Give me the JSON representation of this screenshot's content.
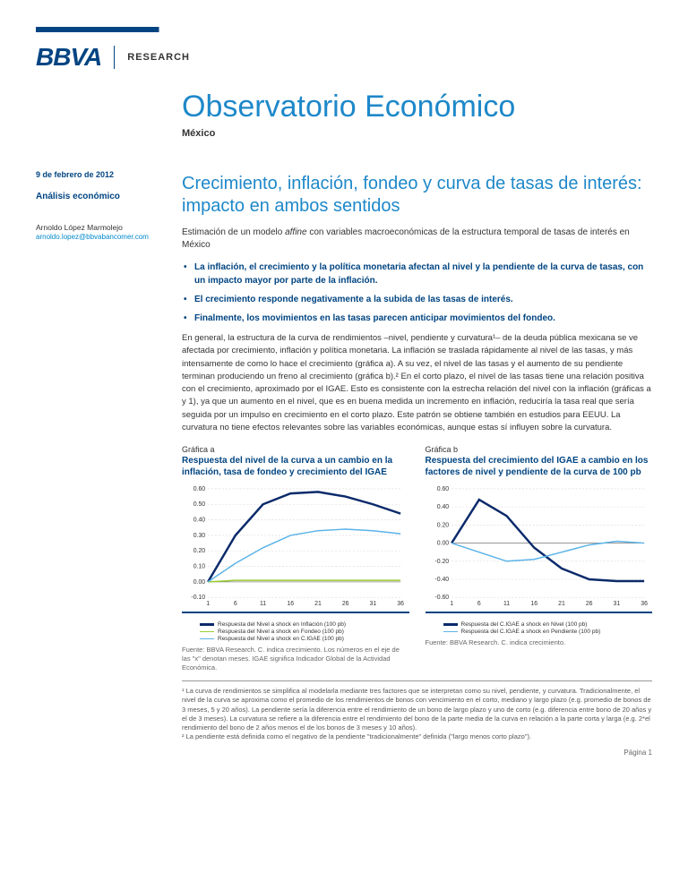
{
  "header": {
    "logo": "BBVA",
    "research": "RESEARCH"
  },
  "sidebar": {
    "date": "9  de febrero de 2012",
    "section": "Análisis económico",
    "author": "Arnoldo López Marmolejo",
    "email": "arnoldo.lopez@bbvabancomer.com"
  },
  "doc": {
    "title": "Observatorio Económico",
    "country": "México"
  },
  "article": {
    "title": "Crecimiento, inflación, fondeo y curva de tasas de interés: impacto en ambos sentidos",
    "subtitle_pre": "Estimación de un modelo ",
    "subtitle_em": "affine",
    "subtitle_post": " con variables macroeconómicas de la estructura temporal de tasas de interés en México",
    "bullets": [
      "La inflación, el crecimiento y la política monetaria afectan al nivel y la pendiente de la curva de tasas, con un impacto mayor por parte de la inflación.",
      "El crecimiento responde negativamente a la subida de las tasas de interés.",
      "Finalmente, los movimientos en las tasas parecen anticipar movimientos del fondeo."
    ],
    "body": "En general, la estructura de la curva de rendimientos –nivel, pendiente y curvatura¹– de la deuda pública mexicana se ve afectada por crecimiento, inflación y política monetaria. La inflación se traslada rápidamente al nivel de las tasas, y más intensamente de como lo hace el crecimiento (gráfica a). A su vez, el nivel de las tasas y el aumento de su pendiente terminan produciendo un freno al crecimiento (gráfica b).² En el corto plazo, el nivel de las tasas tiene una relación positiva con el crecimiento, aproximado por el IGAE. Esto es consistente con la estrecha relación del nivel con la inflación (gráficas a y 1), ya que un aumento en el nivel, que es en buena medida un incremento en inflación, reduciría la tasa real que sería seguida por un impulso en crecimiento en el corto plazo. Este patrón se obtiene también en estudios para EEUU. La curvatura no tiene efectos relevantes sobre las variables económicas, aunque estas sí influyen sobre la curvatura."
  },
  "chartA": {
    "label": "Gráfica a",
    "title": "Respuesta del nivel de la curva a un cambio en la inflación, tasa de fondeo y crecimiento del IGAE",
    "x": [
      1,
      6,
      11,
      16,
      21,
      26,
      31,
      36
    ],
    "ylim": [
      -0.1,
      0.6
    ],
    "yticks": [
      -0.1,
      0.0,
      0.1,
      0.2,
      0.3,
      0.4,
      0.5,
      0.6
    ],
    "series": [
      {
        "name": "Respuesta del Nivel a shock en Inflación (100 pb)",
        "color": "#0b2a6b",
        "width": 2.5,
        "values": [
          0.0,
          0.3,
          0.5,
          0.57,
          0.58,
          0.55,
          0.5,
          0.44
        ]
      },
      {
        "name": "Respuesta del Nivel a shock en Fondeo (100 pb)",
        "color": "#9acd32",
        "width": 1.5,
        "values": [
          0.0,
          0.01,
          0.01,
          0.01,
          0.01,
          0.01,
          0.01,
          0.01
        ]
      },
      {
        "name": "Respuesta del Nivel a shock en C.IGAE (100 pb)",
        "color": "#5ab3e8",
        "width": 1.5,
        "values": [
          0.0,
          0.12,
          0.22,
          0.3,
          0.33,
          0.34,
          0.33,
          0.31
        ]
      }
    ],
    "source": "Fuente: BBVA Research. C. indica crecimiento. Los números en el eje de las \"x\" denotan meses. IGAE significa Indicador Global de la Actividad Económica.",
    "grid_color": "#d8d8d8",
    "axis_color": "#888",
    "label_fontsize": 7
  },
  "chartB": {
    "label": "Gráfica b",
    "title": "Respuesta del crecimiento del IGAE a cambio en los factores de nivel y pendiente de la curva de 100 pb",
    "x": [
      1,
      6,
      11,
      16,
      21,
      26,
      31,
      36
    ],
    "ylim": [
      -0.6,
      0.6
    ],
    "yticks": [
      -0.6,
      -0.4,
      -0.2,
      0.0,
      0.2,
      0.4,
      0.6
    ],
    "series": [
      {
        "name": "Respuesta del C.IGAE a shock en Nivel (100  pb)",
        "color": "#0b2a6b",
        "width": 2.5,
        "values": [
          0.0,
          0.48,
          0.3,
          -0.05,
          -0.28,
          -0.4,
          -0.42,
          -0.42
        ]
      },
      {
        "name": "Respuesta del C.IGAE a shock en Pendiente (100 pb)",
        "color": "#5ab3e8",
        "width": 1.5,
        "values": [
          0.0,
          -0.1,
          -0.2,
          -0.18,
          -0.1,
          -0.02,
          0.02,
          0.0
        ]
      }
    ],
    "source": "Fuente: BBVA Research. C. indica crecimiento.",
    "grid_color": "#d8d8d8",
    "axis_color": "#888",
    "label_fontsize": 7
  },
  "footnotes": {
    "f1": "¹ La curva de rendimientos se simplifica al modelarla mediante tres factores que se interpretan como su nivel, pendiente, y curvatura. Tradicionalmente, el nivel de la curva se aproxima como el promedio de los rendimientos de bonos con vencimiento en el corto, mediano y largo plazo (e.g. promedio de bonos de 3 meses, 5 y 20 años). La pendiente sería  la diferencia entre el rendimiento de un bono de largo plazo y uno de corto (e.g. diferencia entre bono de 20 años y el de 3 meses). La curvatura se refiere a la diferencia entre el rendimiento del bono de la parte media de la curva en relación a la parte corta y larga (e.g. 2*el rendimiento del bono de 2 años menos el de los bonos de 3 meses y 10 años).",
    "f2": "² La pendiente está definida como el negativo de la pendiente \"tradicionalmente\" definida (\"largo menos corto plazo\")."
  },
  "page_num": "Página 1"
}
